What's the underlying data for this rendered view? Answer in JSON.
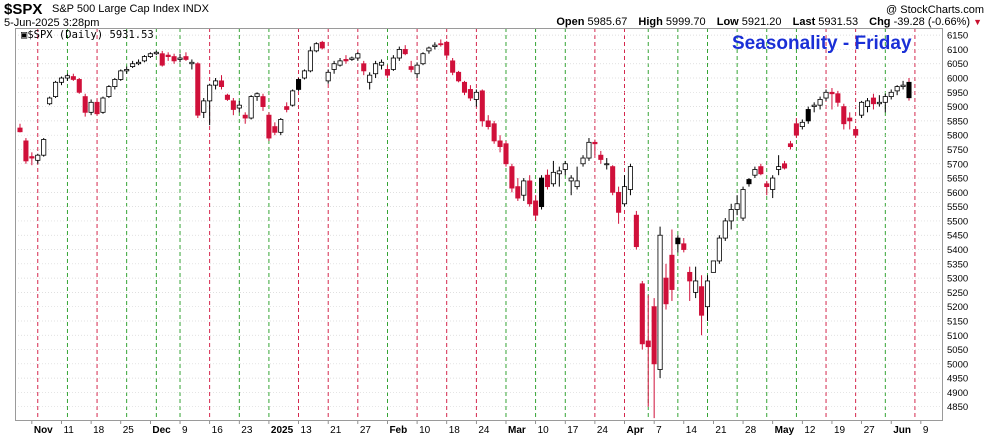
{
  "header": {
    "symbol": "$SPX",
    "name": "S&P 500 Large Cap Index INDX",
    "datetime": "5-Jun-2025 3:28pm",
    "credit": "@ StockCharts.com",
    "open_label": "Open",
    "open": "5985.67",
    "high_label": "High",
    "high": "5999.70",
    "low_label": "Low",
    "low": "5921.20",
    "last_label": "Last",
    "last": "5931.53",
    "chg_label": "Chg",
    "chg": "-39.28 (-0.66%)"
  },
  "legend": "$SPX (Daily) 5931.53",
  "chart_data": {
    "type": "candlestick",
    "title": "Seasonality - Friday",
    "x_tick_labels": [
      "Nov",
      "11",
      "18",
      "25",
      "Dec",
      "9",
      "16",
      "23",
      "2025",
      "13",
      "21",
      "27",
      "Feb",
      "10",
      "18",
      "24",
      "Mar",
      "10",
      "17",
      "24",
      "Apr",
      "7",
      "14",
      "21",
      "28",
      "May",
      "12",
      "19",
      "27",
      "Jun",
      "9"
    ],
    "ylim": [
      4800,
      6175
    ],
    "y_ticks": [
      4850,
      4900,
      4950,
      5000,
      5050,
      5100,
      5150,
      5200,
      5250,
      5300,
      5350,
      5400,
      5450,
      5500,
      5550,
      5600,
      5650,
      5700,
      5750,
      5800,
      5850,
      5900,
      5950,
      6000,
      6050,
      6100,
      6150
    ],
    "colors": {
      "up": "#ffffff",
      "down": "#d0103a",
      "edge": "#000000",
      "friday_up_line": "#1f9a1f",
      "friday_down_line": "#d0103a",
      "highlight": "#f3e21a"
    },
    "candles": [
      {
        "o": 5825,
        "h": 5840,
        "l": 5810,
        "c": 5812
      },
      {
        "o": 5780,
        "h": 5790,
        "l": 5700,
        "c": 5710
      },
      {
        "o": 5725,
        "h": 5740,
        "l": 5695,
        "c": 5720
      },
      {
        "o": 5712,
        "h": 5735,
        "l": 5700,
        "c": 5730
      },
      {
        "o": 5730,
        "h": 5790,
        "l": 5725,
        "c": 5785
      },
      {
        "o": 5910,
        "h": 5935,
        "l": 5905,
        "c": 5930
      },
      {
        "o": 5935,
        "h": 5990,
        "l": 5930,
        "c": 5985
      },
      {
        "o": 5985,
        "h": 6005,
        "l": 5975,
        "c": 6000
      },
      {
        "o": 6000,
        "h": 6015,
        "l": 5990,
        "c": 6008
      },
      {
        "o": 6005,
        "h": 6015,
        "l": 5990,
        "c": 5995
      },
      {
        "o": 5995,
        "h": 6000,
        "l": 5945,
        "c": 5950
      },
      {
        "o": 5935,
        "h": 5945,
        "l": 5865,
        "c": 5880
      },
      {
        "o": 5880,
        "h": 5925,
        "l": 5870,
        "c": 5915
      },
      {
        "o": 5915,
        "h": 5925,
        "l": 5870,
        "c": 5875
      },
      {
        "o": 5880,
        "h": 5935,
        "l": 5875,
        "c": 5930
      },
      {
        "o": 5935,
        "h": 5975,
        "l": 5930,
        "c": 5970
      },
      {
        "o": 5970,
        "h": 6000,
        "l": 5960,
        "c": 5995
      },
      {
        "o": 5995,
        "h": 6030,
        "l": 5990,
        "c": 6025
      },
      {
        "o": 6025,
        "h": 6040,
        "l": 6015,
        "c": 6030
      },
      {
        "o": 6040,
        "h": 6060,
        "l": 6035,
        "c": 6050
      },
      {
        "o": 6050,
        "h": 6065,
        "l": 6045,
        "c": 6055
      },
      {
        "o": 6060,
        "h": 6080,
        "l": 6055,
        "c": 6075
      },
      {
        "o": 6075,
        "h": 6090,
        "l": 6070,
        "c": 6085
      },
      {
        "o": 6085,
        "h": 6095,
        "l": 6080,
        "c": 6090
      },
      {
        "o": 6085,
        "h": 6095,
        "l": 6040,
        "c": 6045
      },
      {
        "o": 6080,
        "h": 6090,
        "l": 6060,
        "c": 6075
      },
      {
        "o": 6075,
        "h": 6085,
        "l": 6050,
        "c": 6060
      },
      {
        "o": 6065,
        "h": 6085,
        "l": 6055,
        "c": 6070
      },
      {
        "o": 6075,
        "h": 6090,
        "l": 6060,
        "c": 6065
      },
      {
        "o": 6050,
        "h": 6065,
        "l": 6030,
        "c": 6055
      },
      {
        "o": 6050,
        "h": 6055,
        "l": 5860,
        "c": 5870
      },
      {
        "o": 5880,
        "h": 5930,
        "l": 5860,
        "c": 5920
      },
      {
        "o": 5920,
        "h": 5980,
        "l": 5835,
        "c": 5975
      },
      {
        "o": 5975,
        "h": 6000,
        "l": 5960,
        "c": 5990
      },
      {
        "o": 5990,
        "h": 6010,
        "l": 5960,
        "c": 5970
      },
      {
        "o": 5940,
        "h": 5945,
        "l": 5920,
        "c": 5925
      },
      {
        "o": 5920,
        "h": 5930,
        "l": 5870,
        "c": 5890
      },
      {
        "o": 5895,
        "h": 5920,
        "l": 5880,
        "c": 5905
      },
      {
        "o": 5870,
        "h": 5880,
        "l": 5840,
        "c": 5860
      },
      {
        "o": 5860,
        "h": 5940,
        "l": 5855,
        "c": 5935
      },
      {
        "o": 5935,
        "h": 5950,
        "l": 5920,
        "c": 5945
      },
      {
        "o": 5935,
        "h": 5945,
        "l": 5885,
        "c": 5900
      },
      {
        "o": 5870,
        "h": 5880,
        "l": 5780,
        "c": 5790
      },
      {
        "o": 5830,
        "h": 5845,
        "l": 5800,
        "c": 5810
      },
      {
        "o": 5810,
        "h": 5860,
        "l": 5800,
        "c": 5855
      },
      {
        "o": 5900,
        "h": 5915,
        "l": 5880,
        "c": 5890
      },
      {
        "o": 5905,
        "h": 5960,
        "l": 5900,
        "c": 5955
      },
      {
        "o": 5960,
        "h": 6000,
        "l": 5955,
        "c": 5995
      },
      {
        "o": 6000,
        "h": 6030,
        "l": 5995,
        "c": 6025
      },
      {
        "o": 6025,
        "h": 6110,
        "l": 6020,
        "c": 6095
      },
      {
        "o": 6095,
        "h": 6125,
        "l": 6090,
        "c": 6120
      },
      {
        "o": 6125,
        "h": 6130,
        "l": 6100,
        "c": 6105
      },
      {
        "o": 5990,
        "h": 6030,
        "l": 5980,
        "c": 6020
      },
      {
        "o": 6030,
        "h": 6060,
        "l": 6015,
        "c": 6050
      },
      {
        "o": 6045,
        "h": 6070,
        "l": 6040,
        "c": 6060
      },
      {
        "o": 6065,
        "h": 6080,
        "l": 6050,
        "c": 6060
      },
      {
        "o": 6065,
        "h": 6075,
        "l": 6060,
        "c": 6070
      },
      {
        "o": 6070,
        "h": 6090,
        "l": 6060,
        "c": 6085
      },
      {
        "o": 6050,
        "h": 6060,
        "l": 6010,
        "c": 6025
      },
      {
        "o": 5985,
        "h": 6020,
        "l": 5960,
        "c": 6010
      },
      {
        "o": 6015,
        "h": 6060,
        "l": 6000,
        "c": 6050
      },
      {
        "o": 6045,
        "h": 6065,
        "l": 6030,
        "c": 6055
      },
      {
        "o": 6030,
        "h": 6045,
        "l": 6000,
        "c": 6010
      },
      {
        "o": 6030,
        "h": 6080,
        "l": 6025,
        "c": 6070
      },
      {
        "o": 6070,
        "h": 6110,
        "l": 6060,
        "c": 6100
      },
      {
        "o": 6100,
        "h": 6115,
        "l": 6080,
        "c": 6085
      },
      {
        "o": 6040,
        "h": 6060,
        "l": 6020,
        "c": 6030
      },
      {
        "o": 6015,
        "h": 6055,
        "l": 6000,
        "c": 6045
      },
      {
        "o": 6050,
        "h": 6090,
        "l": 6045,
        "c": 6085
      },
      {
        "o": 6095,
        "h": 6110,
        "l": 6085,
        "c": 6105
      },
      {
        "o": 6110,
        "h": 6125,
        "l": 6100,
        "c": 6115
      },
      {
        "o": 6120,
        "h": 6135,
        "l": 6110,
        "c": 6118
      },
      {
        "o": 6125,
        "h": 6130,
        "l": 6070,
        "c": 6080
      },
      {
        "o": 6060,
        "h": 6070,
        "l": 6010,
        "c": 6020
      },
      {
        "o": 6020,
        "h": 6025,
        "l": 5985,
        "c": 5990
      },
      {
        "o": 5985,
        "h": 5990,
        "l": 5940,
        "c": 5950
      },
      {
        "o": 5960,
        "h": 5975,
        "l": 5920,
        "c": 5930
      },
      {
        "o": 5925,
        "h": 5960,
        "l": 5900,
        "c": 5950
      },
      {
        "o": 5955,
        "h": 5960,
        "l": 5830,
        "c": 5850
      },
      {
        "o": 5850,
        "h": 5870,
        "l": 5820,
        "c": 5830
      },
      {
        "o": 5840,
        "h": 5850,
        "l": 5770,
        "c": 5780
      },
      {
        "o": 5780,
        "h": 5800,
        "l": 5740,
        "c": 5760
      },
      {
        "o": 5770,
        "h": 5780,
        "l": 5690,
        "c": 5700
      },
      {
        "o": 5690,
        "h": 5700,
        "l": 5600,
        "c": 5615
      },
      {
        "o": 5620,
        "h": 5650,
        "l": 5570,
        "c": 5580
      },
      {
        "o": 5590,
        "h": 5650,
        "l": 5570,
        "c": 5640
      },
      {
        "o": 5640,
        "h": 5660,
        "l": 5550,
        "c": 5560
      },
      {
        "o": 5570,
        "h": 5590,
        "l": 5500,
        "c": 5520
      },
      {
        "o": 5550,
        "h": 5660,
        "l": 5540,
        "c": 5650
      },
      {
        "o": 5660,
        "h": 5680,
        "l": 5610,
        "c": 5620
      },
      {
        "o": 5630,
        "h": 5710,
        "l": 5620,
        "c": 5670
      },
      {
        "o": 5665,
        "h": 5690,
        "l": 5620,
        "c": 5675
      },
      {
        "o": 5680,
        "h": 5710,
        "l": 5660,
        "c": 5700
      },
      {
        "o": 5640,
        "h": 5660,
        "l": 5590,
        "c": 5650
      },
      {
        "o": 5620,
        "h": 5690,
        "l": 5610,
        "c": 5640
      },
      {
        "o": 5700,
        "h": 5730,
        "l": 5690,
        "c": 5720
      },
      {
        "o": 5720,
        "h": 5790,
        "l": 5710,
        "c": 5775
      },
      {
        "o": 5775,
        "h": 5785,
        "l": 5730,
        "c": 5770
      },
      {
        "o": 5730,
        "h": 5745,
        "l": 5700,
        "c": 5715
      },
      {
        "o": 5700,
        "h": 5720,
        "l": 5680,
        "c": 5700
      },
      {
        "o": 5690,
        "h": 5695,
        "l": 5590,
        "c": 5600
      },
      {
        "o": 5600,
        "h": 5620,
        "l": 5490,
        "c": 5530
      },
      {
        "o": 5560,
        "h": 5660,
        "l": 5550,
        "c": 5620
      },
      {
        "o": 5610,
        "h": 5700,
        "l": 5590,
        "c": 5690
      },
      {
        "o": 5520,
        "h": 5535,
        "l": 5400,
        "c": 5410
      },
      {
        "o": 5280,
        "h": 5290,
        "l": 5050,
        "c": 5070
      },
      {
        "o": 5080,
        "h": 5240,
        "l": 4850,
        "c": 5060
      },
      {
        "o": 5200,
        "h": 5230,
        "l": 4810,
        "c": 5000
      },
      {
        "o": 4980,
        "h": 5480,
        "l": 4950,
        "c": 5450
      },
      {
        "o": 5300,
        "h": 5350,
        "l": 5190,
        "c": 5210
      },
      {
        "o": 5380,
        "h": 5470,
        "l": 5220,
        "c": 5260
      },
      {
        "o": 5420,
        "h": 5450,
        "l": 5390,
        "c": 5440
      },
      {
        "o": 5420,
        "h": 5440,
        "l": 5390,
        "c": 5400
      },
      {
        "o": 5320,
        "h": 5340,
        "l": 5220,
        "c": 5290
      },
      {
        "o": 5250,
        "h": 5340,
        "l": 5230,
        "c": 5290
      },
      {
        "o": 5270,
        "h": 5310,
        "l": 5100,
        "c": 5170
      },
      {
        "o": 5200,
        "h": 5310,
        "l": 5150,
        "c": 5290
      },
      {
        "o": 5320,
        "h": 5360,
        "l": 5320,
        "c": 5360
      },
      {
        "o": 5360,
        "h": 5450,
        "l": 5350,
        "c": 5440
      },
      {
        "o": 5440,
        "h": 5510,
        "l": 5430,
        "c": 5500
      },
      {
        "o": 5500,
        "h": 5560,
        "l": 5470,
        "c": 5540
      },
      {
        "o": 5540,
        "h": 5590,
        "l": 5520,
        "c": 5560
      },
      {
        "o": 5510,
        "h": 5620,
        "l": 5500,
        "c": 5610
      },
      {
        "o": 5630,
        "h": 5650,
        "l": 5620,
        "c": 5645
      },
      {
        "o": 5660,
        "h": 5690,
        "l": 5650,
        "c": 5680
      },
      {
        "o": 5690,
        "h": 5700,
        "l": 5660,
        "c": 5665
      },
      {
        "o": 5630,
        "h": 5640,
        "l": 5590,
        "c": 5620
      },
      {
        "o": 5610,
        "h": 5660,
        "l": 5580,
        "c": 5650
      },
      {
        "o": 5680,
        "h": 5730,
        "l": 5660,
        "c": 5690
      },
      {
        "o": 5700,
        "h": 5710,
        "l": 5680,
        "c": 5685
      },
      {
        "o": 5770,
        "h": 5780,
        "l": 5750,
        "c": 5760
      },
      {
        "o": 5840,
        "h": 5860,
        "l": 5790,
        "c": 5800
      },
      {
        "o": 5830,
        "h": 5855,
        "l": 5820,
        "c": 5845
      },
      {
        "o": 5850,
        "h": 5900,
        "l": 5840,
        "c": 5890
      },
      {
        "o": 5900,
        "h": 5915,
        "l": 5880,
        "c": 5905
      },
      {
        "o": 5905,
        "h": 5935,
        "l": 5890,
        "c": 5925
      },
      {
        "o": 5930,
        "h": 5960,
        "l": 5920,
        "c": 5950
      },
      {
        "o": 5950,
        "h": 5965,
        "l": 5890,
        "c": 5945
      },
      {
        "o": 5945,
        "h": 5955,
        "l": 5900,
        "c": 5915
      },
      {
        "o": 5900,
        "h": 5910,
        "l": 5820,
        "c": 5840
      },
      {
        "o": 5860,
        "h": 5880,
        "l": 5820,
        "c": 5850
      },
      {
        "o": 5820,
        "h": 5830,
        "l": 5790,
        "c": 5800
      },
      {
        "o": 5870,
        "h": 5920,
        "l": 5860,
        "c": 5915
      },
      {
        "o": 5900,
        "h": 5930,
        "l": 5880,
        "c": 5920
      },
      {
        "o": 5930,
        "h": 5945,
        "l": 5890,
        "c": 5910
      },
      {
        "o": 5910,
        "h": 5940,
        "l": 5900,
        "c": 5915
      },
      {
        "o": 5915,
        "h": 5945,
        "l": 5880,
        "c": 5935
      },
      {
        "o": 5935,
        "h": 5960,
        "l": 5925,
        "c": 5950
      },
      {
        "o": 5955,
        "h": 5975,
        "l": 5940,
        "c": 5970
      },
      {
        "o": 5970,
        "h": 5990,
        "l": 5960,
        "c": 5975
      },
      {
        "o": 5985,
        "h": 6000,
        "l": 5921,
        "c": 5931
      }
    ],
    "solid_black_indices": [
      47,
      88,
      111,
      123,
      133,
      150
    ],
    "highlight_index": 151,
    "friday_indices": [
      3,
      8,
      13,
      18,
      23,
      27,
      32,
      37,
      42,
      47,
      52,
      57,
      62,
      67,
      72,
      77,
      82,
      87,
      92,
      97,
      102,
      106,
      111,
      116,
      121,
      126,
      131,
      136,
      141,
      146,
      151
    ],
    "friday_directions": [
      "down",
      "up",
      "down",
      "up",
      "up",
      "up",
      "down",
      "up",
      "up",
      "down",
      "down",
      "down",
      "up",
      "down",
      "down",
      "down",
      "up",
      "up",
      "up",
      "down",
      "down",
      "up",
      "up",
      "up",
      "up",
      "up",
      "up",
      "down",
      "down",
      "up",
      "down"
    ]
  }
}
